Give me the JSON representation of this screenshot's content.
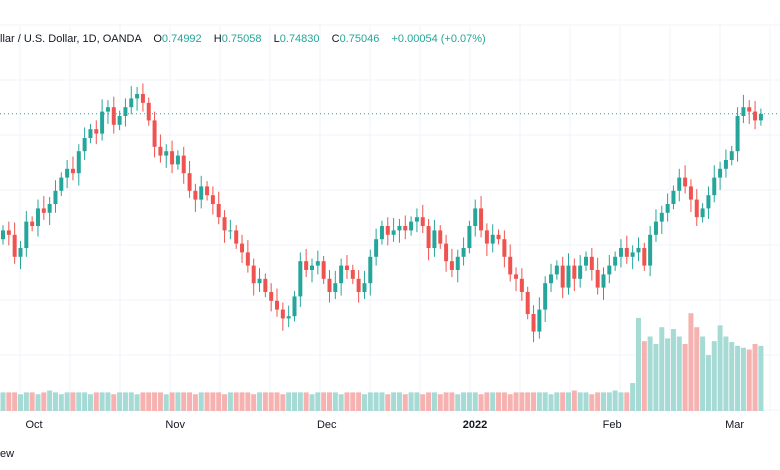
{
  "header": {
    "symbol": "llar / U.S. Dollar, 1D, OANDA",
    "open_label": "O",
    "open_value": "0.74992",
    "high_label": "H",
    "high_value": "0.75058",
    "low_label": "L",
    "low_value": "0.74830",
    "close_label": "C",
    "close_value": "0.75046",
    "change": "+0.00054 (+0.07%)"
  },
  "footer_text": "ew",
  "colors": {
    "up": "#26a69a",
    "down": "#ef5350",
    "vol_up": "#a6dad5",
    "vol_down": "#f5b2b0",
    "grid": "#f0f3fa",
    "axis_text": "#131722",
    "last_price_line": "#26a69a"
  },
  "chart_data": {
    "type": "candlestick",
    "title": "llar / U.S. Dollar, 1D, OANDA",
    "x_tick_labels": [
      "Oct",
      "Nov",
      "Dec",
      "2022",
      "Feb",
      "Mar"
    ],
    "x_tick_index": [
      3,
      27,
      53,
      78,
      102,
      123
    ],
    "ylim": [
      0.69,
      0.765
    ],
    "last_price": 0.7505,
    "grid": true,
    "close": [
      0.724,
      0.723,
      0.718,
      0.72,
      0.726,
      0.725,
      0.729,
      0.728,
      0.73,
      0.733,
      0.736,
      0.738,
      0.737,
      0.742,
      0.745,
      0.747,
      0.746,
      0.751,
      0.752,
      0.748,
      0.75,
      0.752,
      0.754,
      0.755,
      0.753,
      0.749,
      0.743,
      0.741,
      0.742,
      0.739,
      0.741,
      0.737,
      0.733,
      0.731,
      0.734,
      0.732,
      0.73,
      0.727,
      0.724,
      0.724,
      0.721,
      0.719,
      0.716,
      0.712,
      0.713,
      0.71,
      0.708,
      0.706,
      0.704,
      0.7045,
      0.709,
      0.717,
      0.715,
      0.716,
      0.717,
      0.713,
      0.71,
      0.712,
      0.716,
      0.715,
      0.713,
      0.71,
      0.712,
      0.718,
      0.722,
      0.725,
      0.723,
      0.724,
      0.725,
      0.724,
      0.726,
      0.727,
      0.725,
      0.72,
      0.724,
      0.721,
      0.717,
      0.715,
      0.718,
      0.72,
      0.725,
      0.729,
      0.724,
      0.721,
      0.723,
      0.722,
      0.718,
      0.714,
      0.713,
      0.71,
      0.705,
      0.701,
      0.706,
      0.712,
      0.714,
      0.716,
      0.711,
      0.716,
      0.713,
      0.716,
      0.718,
      0.715,
      0.711,
      0.714,
      0.716,
      0.718,
      0.72,
      0.718,
      0.719,
      0.72,
      0.716,
      0.723,
      0.726,
      0.728,
      0.73,
      0.733,
      0.736,
      0.734,
      0.731,
      0.727,
      0.729,
      0.732,
      0.736,
      0.738,
      0.74,
      0.742,
      0.75,
      0.752,
      0.751,
      0.749,
      0.7505
    ],
    "volume_relative": [
      0.2,
      0.2,
      0.2,
      0.18,
      0.2,
      0.2,
      0.18,
      0.2,
      0.22,
      0.2,
      0.18,
      0.2,
      0.2,
      0.2,
      0.2,
      0.18,
      0.2,
      0.2,
      0.2,
      0.18,
      0.2,
      0.2,
      0.2,
      0.18,
      0.2,
      0.2,
      0.2,
      0.2,
      0.18,
      0.2,
      0.2,
      0.2,
      0.2,
      0.18,
      0.2,
      0.2,
      0.2,
      0.2,
      0.18,
      0.2,
      0.2,
      0.2,
      0.2,
      0.18,
      0.2,
      0.2,
      0.2,
      0.2,
      0.18,
      0.2,
      0.2,
      0.2,
      0.2,
      0.18,
      0.2,
      0.2,
      0.2,
      0.2,
      0.18,
      0.2,
      0.2,
      0.2,
      0.18,
      0.2,
      0.2,
      0.2,
      0.18,
      0.2,
      0.2,
      0.18,
      0.2,
      0.2,
      0.18,
      0.2,
      0.2,
      0.18,
      0.2,
      0.2,
      0.18,
      0.2,
      0.2,
      0.2,
      0.18,
      0.2,
      0.2,
      0.2,
      0.2,
      0.18,
      0.2,
      0.2,
      0.2,
      0.2,
      0.2,
      0.2,
      0.18,
      0.2,
      0.2,
      0.2,
      0.22,
      0.2,
      0.2,
      0.18,
      0.2,
      0.2,
      0.2,
      0.22,
      0.2,
      0.2,
      0.3,
      1.0,
      0.75,
      0.8,
      0.72,
      0.9,
      0.78,
      0.88,
      0.8,
      0.72,
      1.05,
      0.9,
      0.8,
      0.6,
      0.75,
      0.92,
      0.8,
      0.74,
      0.7,
      0.68,
      0.66,
      0.72,
      0.7
    ]
  }
}
